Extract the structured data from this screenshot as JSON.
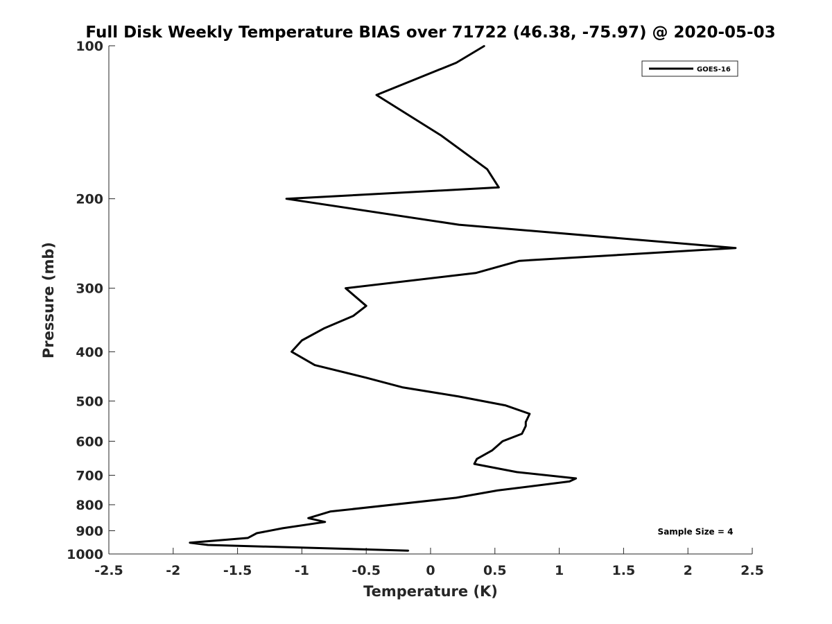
{
  "chart_data": {
    "type": "line",
    "title": "Full Disk Weekly Temperature BIAS over 71722 (46.38, -75.97) @ 2020-05-03",
    "xlabel": "Temperature (K)",
    "ylabel": "Pressure (mb)",
    "xlim": [
      -2.5,
      2.5
    ],
    "ylim": [
      1000,
      100
    ],
    "y_scale": "log",
    "x_ticks": [
      -2.5,
      -2,
      -1.5,
      -1,
      -0.5,
      0,
      0.5,
      1,
      1.5,
      2,
      2.5
    ],
    "x_tick_labels": [
      "-2.5",
      "-2",
      "-1.5",
      "-1",
      "-0.5",
      "0",
      "0.5",
      "1",
      "1.5",
      "2",
      "2.5"
    ],
    "y_ticks": [
      100,
      200,
      300,
      400,
      500,
      600,
      700,
      800,
      900,
      1000
    ],
    "y_tick_labels": [
      "100",
      "200",
      "300",
      "400",
      "500",
      "600",
      "700",
      "800",
      "900",
      "1000"
    ],
    "grid": false,
    "legend_position": "top-right",
    "annotation": "Sample Size = 4",
    "series": [
      {
        "name": "GOES-16",
        "color": "#000000",
        "points": [
          {
            "x": 0.42,
            "y": 100
          },
          {
            "x": 0.2,
            "y": 108
          },
          {
            "x": -0.42,
            "y": 125
          },
          {
            "x": 0.08,
            "y": 150
          },
          {
            "x": 0.44,
            "y": 175
          },
          {
            "x": 0.53,
            "y": 190
          },
          {
            "x": -1.12,
            "y": 200
          },
          {
            "x": 0.22,
            "y": 225
          },
          {
            "x": 2.37,
            "y": 250
          },
          {
            "x": 0.69,
            "y": 265
          },
          {
            "x": 0.35,
            "y": 280
          },
          {
            "x": -0.66,
            "y": 300
          },
          {
            "x": -0.5,
            "y": 325
          },
          {
            "x": -0.6,
            "y": 340
          },
          {
            "x": -0.83,
            "y": 360
          },
          {
            "x": -1.0,
            "y": 380
          },
          {
            "x": -1.08,
            "y": 400
          },
          {
            "x": -0.9,
            "y": 425
          },
          {
            "x": -0.5,
            "y": 450
          },
          {
            "x": -0.22,
            "y": 470
          },
          {
            "x": 0.22,
            "y": 490
          },
          {
            "x": 0.58,
            "y": 510
          },
          {
            "x": 0.77,
            "y": 530
          },
          {
            "x": 0.74,
            "y": 550
          },
          {
            "x": 0.74,
            "y": 560
          },
          {
            "x": 0.71,
            "y": 580
          },
          {
            "x": 0.56,
            "y": 600
          },
          {
            "x": 0.48,
            "y": 625
          },
          {
            "x": 0.36,
            "y": 650
          },
          {
            "x": 0.34,
            "y": 665
          },
          {
            "x": 0.67,
            "y": 690
          },
          {
            "x": 1.13,
            "y": 710
          },
          {
            "x": 1.08,
            "y": 720
          },
          {
            "x": 0.52,
            "y": 750
          },
          {
            "x": 0.2,
            "y": 775
          },
          {
            "x": -0.78,
            "y": 825
          },
          {
            "x": -0.95,
            "y": 850
          },
          {
            "x": -0.82,
            "y": 865
          },
          {
            "x": -1.15,
            "y": 890
          },
          {
            "x": -1.35,
            "y": 910
          },
          {
            "x": -1.42,
            "y": 930
          },
          {
            "x": -1.87,
            "y": 950
          },
          {
            "x": -1.73,
            "y": 960
          },
          {
            "x": -0.17,
            "y": 985
          }
        ]
      }
    ]
  }
}
